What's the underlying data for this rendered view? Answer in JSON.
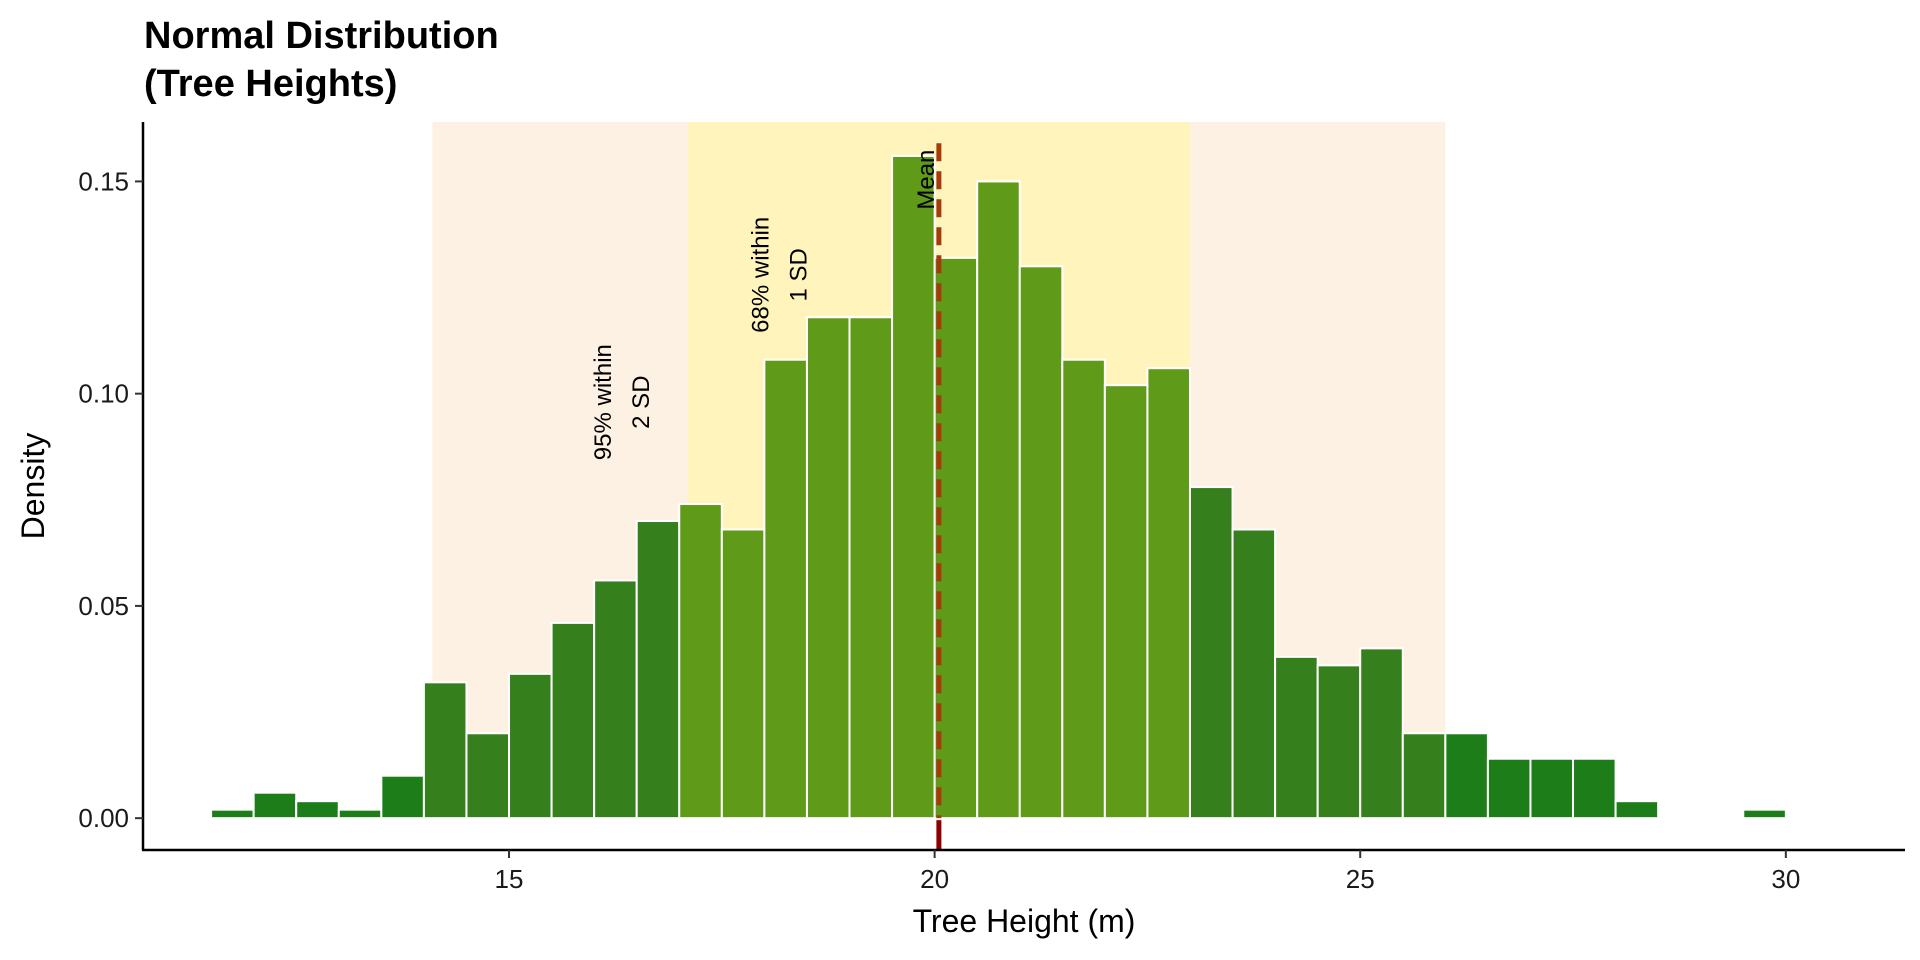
{
  "chart_data": {
    "type": "bar",
    "title_lines": [
      "Normal Distribution",
      "(Tree Heights)"
    ],
    "xlabel": "Tree Height (m)",
    "ylabel": "Density",
    "xlim": [
      10.7,
      31.4
    ],
    "ylim": [
      -0.0075,
      0.164
    ],
    "x_ticks": [
      15,
      20,
      25,
      30
    ],
    "y_ticks": [
      0.0,
      0.05,
      0.1,
      0.15
    ],
    "y_tick_labels": [
      "0.00",
      "0.05",
      "0.10",
      "0.15"
    ],
    "grid": false,
    "bin_width": 0.5,
    "bins": [
      {
        "x0": 11.5,
        "y": 0.002
      },
      {
        "x0": 12.0,
        "y": 0.006
      },
      {
        "x0": 12.5,
        "y": 0.004
      },
      {
        "x0": 13.0,
        "y": 0.002
      },
      {
        "x0": 13.5,
        "y": 0.01
      },
      {
        "x0": 14.0,
        "y": 0.032
      },
      {
        "x0": 14.5,
        "y": 0.02
      },
      {
        "x0": 15.0,
        "y": 0.034
      },
      {
        "x0": 15.5,
        "y": 0.046
      },
      {
        "x0": 16.0,
        "y": 0.056
      },
      {
        "x0": 16.5,
        "y": 0.07
      },
      {
        "x0": 17.0,
        "y": 0.074
      },
      {
        "x0": 17.5,
        "y": 0.068
      },
      {
        "x0": 18.0,
        "y": 0.108
      },
      {
        "x0": 18.5,
        "y": 0.118
      },
      {
        "x0": 19.0,
        "y": 0.118
      },
      {
        "x0": 19.5,
        "y": 0.156
      },
      {
        "x0": 20.0,
        "y": 0.132
      },
      {
        "x0": 20.5,
        "y": 0.15
      },
      {
        "x0": 21.0,
        "y": 0.13
      },
      {
        "x0": 21.5,
        "y": 0.108
      },
      {
        "x0": 22.0,
        "y": 0.102
      },
      {
        "x0": 22.5,
        "y": 0.106
      },
      {
        "x0": 23.0,
        "y": 0.078
      },
      {
        "x0": 23.5,
        "y": 0.068
      },
      {
        "x0": 24.0,
        "y": 0.038
      },
      {
        "x0": 24.5,
        "y": 0.036
      },
      {
        "x0": 25.0,
        "y": 0.04
      },
      {
        "x0": 25.5,
        "y": 0.02
      },
      {
        "x0": 26.0,
        "y": 0.02
      },
      {
        "x0": 26.5,
        "y": 0.014
      },
      {
        "x0": 27.0,
        "y": 0.014
      },
      {
        "x0": 27.5,
        "y": 0.014
      },
      {
        "x0": 28.0,
        "y": 0.004
      },
      {
        "x0": 29.5,
        "y": 0.002
      }
    ],
    "mean": 20.05,
    "sd_bands": [
      {
        "from": 14.1,
        "to": 26.0,
        "label_lines": [
          "95% within",
          "2 SD"
        ],
        "color": "#fdf1e4"
      },
      {
        "from": 17.1,
        "to": 23.0,
        "label_lines": [
          "68% within",
          "1 SD"
        ],
        "color": "#fff4bb"
      }
    ],
    "mean_label": "Mean",
    "colors": {
      "bar_inside_1sd": "#5f9a18",
      "bar_inside_2sd": "#35801c",
      "bar_outside": "#1d7d19",
      "mean_line": "#a63a0a",
      "mean_tick": "#8b0000",
      "axis": "#000000"
    }
  }
}
